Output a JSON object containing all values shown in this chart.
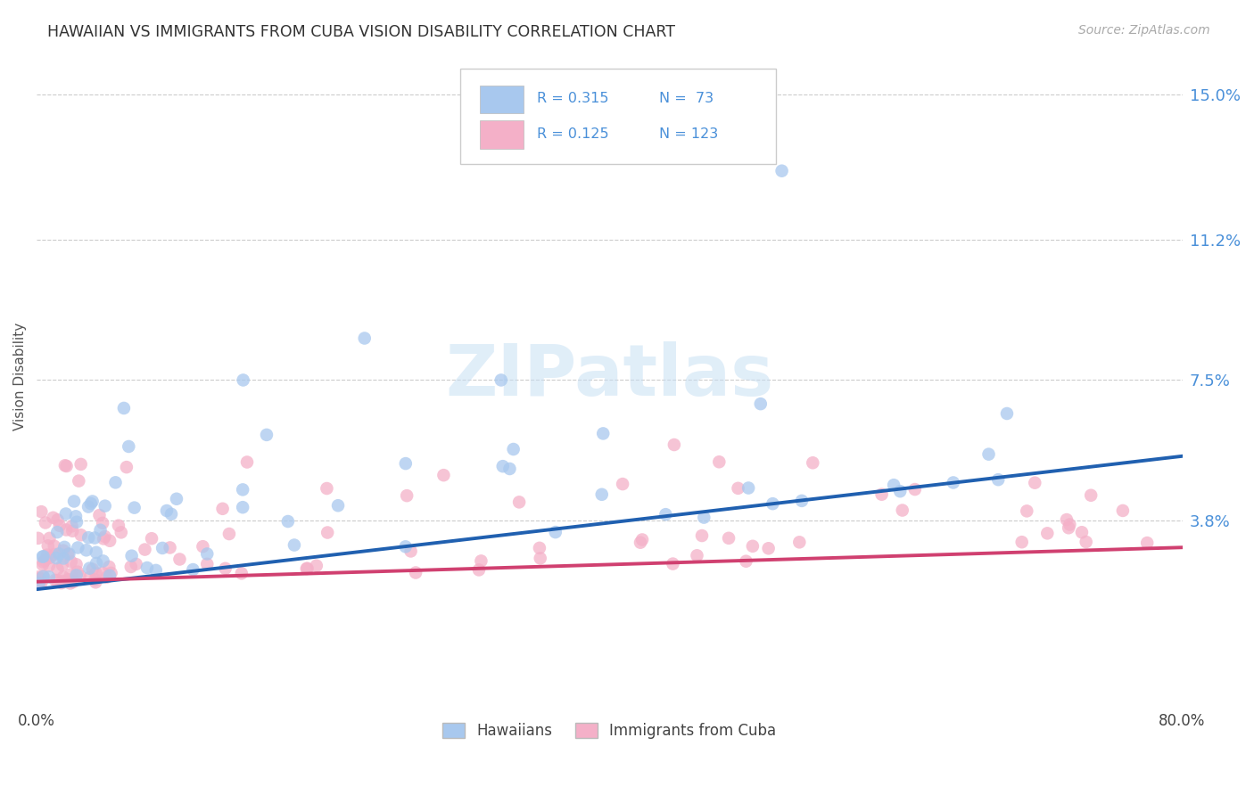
{
  "title": "HAWAIIAN VS IMMIGRANTS FROM CUBA VISION DISABILITY CORRELATION CHART",
  "source": "Source: ZipAtlas.com",
  "ylabel": "Vision Disability",
  "ytick_labels": [
    "3.8%",
    "7.5%",
    "11.2%",
    "15.0%"
  ],
  "ytick_values": [
    0.038,
    0.075,
    0.112,
    0.15
  ],
  "xmin": 0.0,
  "xmax": 0.8,
  "ymin": -0.01,
  "ymax": 0.162,
  "color_hawaiian": "#A8C8EE",
  "color_cuba": "#F4B0C8",
  "color_blue_text": "#4A90D9",
  "line_color_hawaiian": "#2060B0",
  "line_color_cuba": "#D04070",
  "hawaiian_line_x0": 0.0,
  "hawaiian_line_x1": 0.8,
  "hawaiian_line_y0": 0.02,
  "hawaiian_line_y1": 0.055,
  "cuba_line_x0": 0.0,
  "cuba_line_x1": 0.8,
  "cuba_line_y0": 0.022,
  "cuba_line_y1": 0.031
}
